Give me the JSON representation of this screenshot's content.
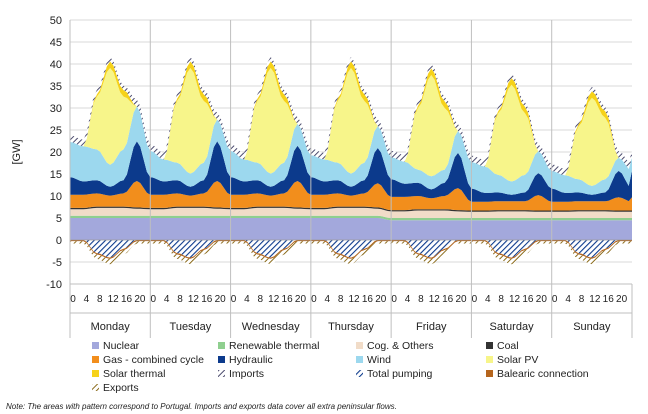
{
  "chart_data": {
    "type": "area",
    "ylabel": "[GW]",
    "ylim": [
      -10,
      50
    ],
    "yticks": [
      -10,
      -5,
      0,
      5,
      10,
      15,
      20,
      25,
      30,
      35,
      40,
      45,
      50
    ],
    "grid": true,
    "legend_position": "bottom",
    "days": [
      "Monday",
      "Tuesday",
      "Wednesday",
      "Thursday",
      "Friday",
      "Saturday",
      "Sunday"
    ],
    "hour_ticks": [
      "0",
      "4",
      "8",
      "12",
      "16",
      "20"
    ],
    "x_hours": [
      0,
      4,
      8,
      12,
      16,
      20
    ],
    "series": [
      {
        "name": "Nuclear",
        "color": "#a3a8dc",
        "pattern": false,
        "daily": [
          [
            5,
            5,
            5,
            5,
            5,
            5
          ],
          [
            5,
            5,
            5,
            5,
            5,
            5
          ],
          [
            5,
            5,
            5,
            5,
            5,
            5
          ],
          [
            5,
            5,
            5,
            5,
            5,
            5
          ],
          [
            4.5,
            4.5,
            4.5,
            4.5,
            4.5,
            4.5
          ],
          [
            4.5,
            4.5,
            4.5,
            4.5,
            4.5,
            4.5
          ],
          [
            4.5,
            4.5,
            4.5,
            4.5,
            4.5,
            4.5
          ]
        ]
      },
      {
        "name": "Renewable thermal",
        "color": "#8fcf8f",
        "pattern": false,
        "daily": [
          [
            0.5,
            0.5,
            0.5,
            0.5,
            0.5,
            0.5
          ],
          [
            0.5,
            0.5,
            0.5,
            0.5,
            0.5,
            0.5
          ],
          [
            0.5,
            0.5,
            0.5,
            0.5,
            0.5,
            0.5
          ],
          [
            0.5,
            0.5,
            0.5,
            0.5,
            0.5,
            0.5
          ],
          [
            0.5,
            0.5,
            0.5,
            0.5,
            0.5,
            0.5
          ],
          [
            0.5,
            0.5,
            0.5,
            0.5,
            0.5,
            0.5
          ],
          [
            0.5,
            0.5,
            0.5,
            0.5,
            0.5,
            0.5
          ]
        ]
      },
      {
        "name": "Cog. & Others",
        "color": "#f1dcc8",
        "pattern": false,
        "daily": [
          [
            1.5,
            1.5,
            1.8,
            1.8,
            1.8,
            1.6
          ],
          [
            1.5,
            1.5,
            1.8,
            1.8,
            1.8,
            1.6
          ],
          [
            1.5,
            1.5,
            1.8,
            1.8,
            1.8,
            1.6
          ],
          [
            1.5,
            1.5,
            1.8,
            1.8,
            1.8,
            1.6
          ],
          [
            1.5,
            1.5,
            1.7,
            1.7,
            1.7,
            1.5
          ],
          [
            1.4,
            1.4,
            1.5,
            1.5,
            1.5,
            1.4
          ],
          [
            1.4,
            1.4,
            1.5,
            1.5,
            1.5,
            1.4
          ]
        ]
      },
      {
        "name": "Coal",
        "color": "#333333",
        "pattern": false,
        "daily": [
          [
            0.3,
            0.3,
            0.3,
            0.3,
            0.3,
            0.3
          ],
          [
            0.3,
            0.3,
            0.3,
            0.3,
            0.3,
            0.3
          ],
          [
            0.3,
            0.3,
            0.3,
            0.3,
            0.3,
            0.3
          ],
          [
            0.3,
            0.3,
            0.3,
            0.3,
            0.3,
            0.3
          ],
          [
            0.3,
            0.3,
            0.3,
            0.3,
            0.3,
            0.3
          ],
          [
            0.3,
            0.3,
            0.3,
            0.3,
            0.3,
            0.3
          ],
          [
            0.3,
            0.3,
            0.3,
            0.3,
            0.3,
            0.3
          ]
        ]
      },
      {
        "name": "Gas - combined cycle",
        "color": "#f28e1c",
        "pattern": false,
        "daily": [
          [
            3,
            3,
            3,
            2.5,
            3,
            6
          ],
          [
            3,
            3,
            3,
            2.5,
            3,
            6
          ],
          [
            3,
            3,
            3,
            2.5,
            3,
            6
          ],
          [
            3,
            3,
            3,
            2.5,
            3,
            5.5
          ],
          [
            3,
            3,
            3,
            2.5,
            3,
            5
          ],
          [
            2,
            2,
            2,
            2,
            2,
            3.5
          ],
          [
            2,
            2,
            2,
            2,
            2,
            3
          ]
        ]
      },
      {
        "name": "Hydraulic",
        "color": "#0c3a8c",
        "pattern": false,
        "daily": [
          [
            4,
            3,
            3,
            2,
            3,
            9
          ],
          [
            4,
            3,
            3,
            2,
            3,
            9
          ],
          [
            4,
            3,
            3,
            2,
            3,
            8
          ],
          [
            4,
            3,
            3,
            2,
            3,
            8
          ],
          [
            4,
            3,
            3,
            2,
            3,
            8
          ],
          [
            3,
            2,
            2,
            1.5,
            2,
            5
          ],
          [
            3,
            2,
            2,
            1.5,
            2,
            6
          ]
        ]
      },
      {
        "name": "Wind",
        "color": "#9cd8ee",
        "pattern": false,
        "daily": [
          [
            8,
            8,
            7,
            5,
            7,
            8
          ],
          [
            6,
            5,
            4,
            3,
            4,
            5
          ],
          [
            6,
            5,
            4,
            3,
            4,
            5
          ],
          [
            5,
            5,
            4,
            3,
            4,
            5
          ],
          [
            5,
            5,
            3,
            3,
            3,
            5
          ],
          [
            6,
            6,
            4,
            3,
            4,
            5
          ],
          [
            4,
            4,
            3,
            2,
            3,
            3
          ]
        ]
      },
      {
        "name": "Solar PV",
        "color": "#f7f58a",
        "pattern": false,
        "daily": [
          [
            0,
            0,
            12,
            22,
            12,
            0
          ],
          [
            0,
            0,
            14,
            24,
            14,
            0
          ],
          [
            0,
            0,
            14,
            24,
            14,
            0
          ],
          [
            0,
            0,
            14,
            24,
            14,
            0
          ],
          [
            0,
            0,
            14,
            23,
            14,
            0
          ],
          [
            0,
            0,
            14,
            22,
            14,
            0
          ],
          [
            0,
            0,
            12,
            20,
            14,
            0
          ]
        ]
      },
      {
        "name": "Solar thermal",
        "color": "#f6d21a",
        "pattern": false,
        "daily": [
          [
            0,
            0,
            0.5,
            1.5,
            1.5,
            0
          ],
          [
            0,
            0,
            0.5,
            1.5,
            1.5,
            0
          ],
          [
            0,
            0,
            0.5,
            1.5,
            1.5,
            0
          ],
          [
            0,
            0,
            0.5,
            1.5,
            1.5,
            0
          ],
          [
            0,
            0,
            0.5,
            1.5,
            1.5,
            0
          ],
          [
            0,
            0,
            0.5,
            1.5,
            1.5,
            0
          ],
          [
            0,
            0,
            0.5,
            1.5,
            1.5,
            0
          ]
        ]
      },
      {
        "name": "Imports",
        "color": "#4b4b6e",
        "pattern": true,
        "daily": [
          [
            1.5,
            1.5,
            1,
            1,
            1,
            1.5
          ],
          [
            1.5,
            1.5,
            1,
            1,
            1,
            1.5
          ],
          [
            1.5,
            1.5,
            1,
            1,
            1,
            1.5
          ],
          [
            1.5,
            1.5,
            1,
            1,
            1,
            1.5
          ],
          [
            1.5,
            1.5,
            1,
            1,
            1,
            1.5
          ],
          [
            1.5,
            1.5,
            1,
            1,
            1,
            1.5
          ],
          [
            1.5,
            1.5,
            1,
            1,
            1,
            1.5
          ]
        ]
      },
      {
        "name": "Total pumping",
        "color": "#0c3a8c",
        "pattern": true,
        "negative": true,
        "daily": [
          [
            0,
            0,
            -3,
            -4,
            -2,
            0
          ],
          [
            0,
            0,
            -3,
            -4,
            -2,
            0
          ],
          [
            0,
            0,
            -3,
            -4,
            -2,
            0
          ],
          [
            0,
            0,
            -3,
            -4,
            -2,
            0
          ],
          [
            0,
            0,
            -3,
            -4,
            -2,
            0
          ],
          [
            0,
            0,
            -3,
            -4,
            -2,
            0
          ],
          [
            0,
            0,
            -3,
            -4,
            -2,
            0
          ]
        ]
      },
      {
        "name": "Balearic connection",
        "color": "#b5651d",
        "pattern": false,
        "daily": [
          [
            -0.3,
            -0.3,
            -0.3,
            -0.3,
            -0.3,
            -0.3
          ],
          [
            -0.3,
            -0.3,
            -0.3,
            -0.3,
            -0.3,
            -0.3
          ],
          [
            -0.3,
            -0.3,
            -0.3,
            -0.3,
            -0.3,
            -0.3
          ],
          [
            -0.3,
            -0.3,
            -0.3,
            -0.3,
            -0.3,
            -0.3
          ],
          [
            -0.3,
            -0.3,
            -0.3,
            -0.3,
            -0.3,
            -0.3
          ],
          [
            -0.3,
            -0.3,
            -0.3,
            -0.3,
            -0.3,
            -0.3
          ],
          [
            -0.3,
            -0.3,
            -0.3,
            -0.3,
            -0.3,
            -0.3
          ]
        ]
      },
      {
        "name": "Exports",
        "color": "#8a6a1a",
        "pattern": true,
        "negative": true,
        "daily": [
          [
            -0.5,
            -0.5,
            -1,
            -1.2,
            -1,
            -0.5
          ],
          [
            -0.5,
            -0.5,
            -1,
            -1.2,
            -1,
            -0.5
          ],
          [
            -0.5,
            -0.5,
            -1,
            -1.2,
            -1,
            -0.5
          ],
          [
            -0.5,
            -0.5,
            -1,
            -1.2,
            -1,
            -0.5
          ],
          [
            -0.5,
            -0.5,
            -1,
            -1.2,
            -1,
            -0.5
          ],
          [
            -0.5,
            -0.5,
            -1,
            -1.2,
            -1,
            -0.5
          ],
          [
            -0.5,
            -0.5,
            -1,
            -1.2,
            -1,
            -0.5
          ]
        ]
      }
    ]
  },
  "note": "Note: The areas with pattern correspond to Portugal. Imports and exports data cover all extra peninsular flows."
}
